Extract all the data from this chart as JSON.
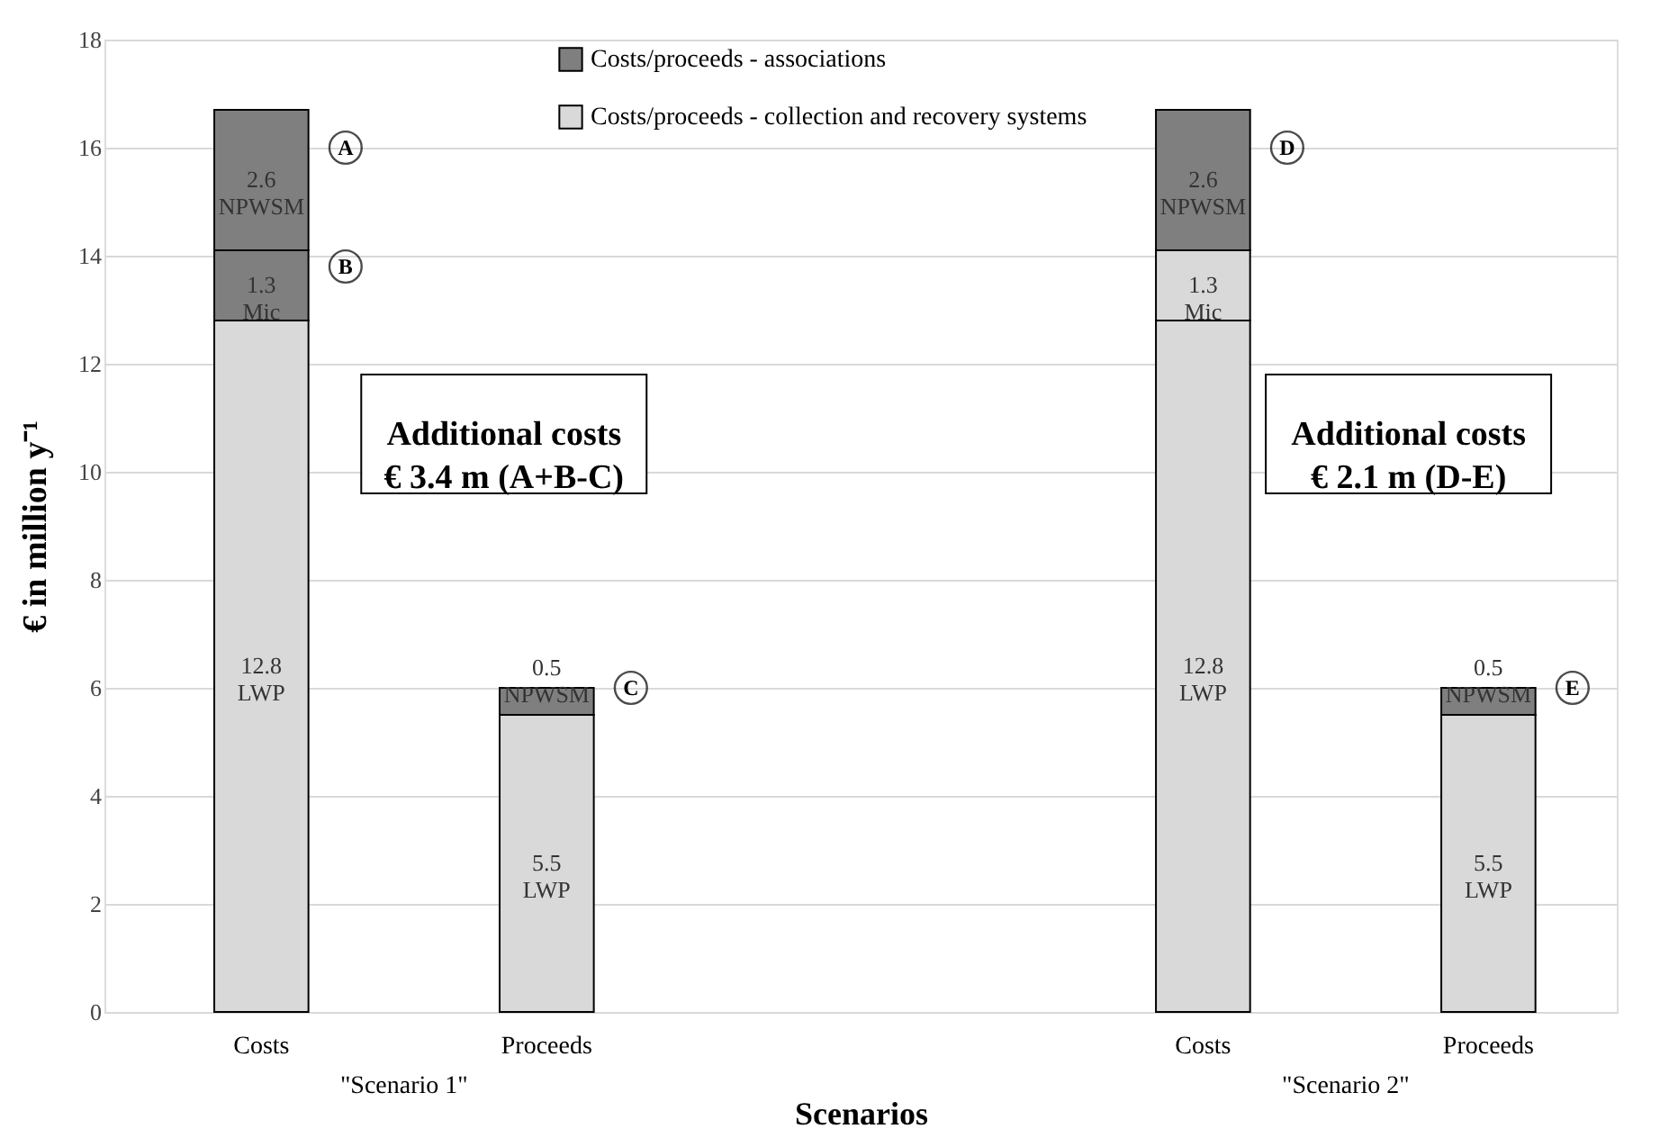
{
  "chart_data": {
    "type": "bar",
    "stacked": true,
    "categories": [
      "Costs",
      "Proceeds",
      "Costs",
      "Proceeds"
    ],
    "series": [
      {
        "name": "Costs/proceeds - collection and recovery systems",
        "color": "#d9d9d9",
        "values": [
          12.8,
          5.5,
          12.8,
          5.5
        ],
        "value_labels": [
          "12.8\nLWP",
          "5.5\nLWP",
          "12.8\nLWP",
          "5.5\nLWP"
        ]
      },
      {
        "name": "Costs/proceeds - associations",
        "color": "#7f7f7f",
        "values": [
          1.3,
          null,
          null,
          null
        ],
        "value_labels": [
          "1.3\nMic",
          null,
          null,
          null
        ]
      },
      {
        "color": "#d9d9d9",
        "values": [
          null,
          null,
          1.3,
          null
        ],
        "value_labels": [
          null,
          null,
          "1.3\nMic",
          null
        ]
      },
      {
        "color": "#7f7f7f",
        "values": [
          2.6,
          0.5,
          2.6,
          0.5
        ],
        "value_labels": [
          "2.6\nNPWSM",
          "0.5\nNPWSM",
          "2.6\nNPWSM",
          "0.5\nNPWSM"
        ]
      }
    ],
    "xlabel": "Scenarios",
    "ylabel": "€ in million y⁻¹",
    "ylim": [
      0,
      18
    ],
    "yticks": [
      0,
      2,
      4,
      6,
      8,
      10,
      12,
      14,
      16,
      18
    ],
    "grid": "y",
    "legend": "top",
    "annotations": [
      {
        "text": "A",
        "y": 16.0
      },
      {
        "text": "B",
        "y": 13.8
      },
      {
        "text": "C",
        "y": 6.0
      },
      {
        "text": "D",
        "y": 16.0
      },
      {
        "text": "E",
        "y": 6.0
      },
      "Additional costs\n€ 3.4 m (A+B-C)",
      "Additional costs\n€ 2.1 m (D-E)",
      "\"Scenario 1\"",
      "\"Scenario 2\""
    ]
  }
}
